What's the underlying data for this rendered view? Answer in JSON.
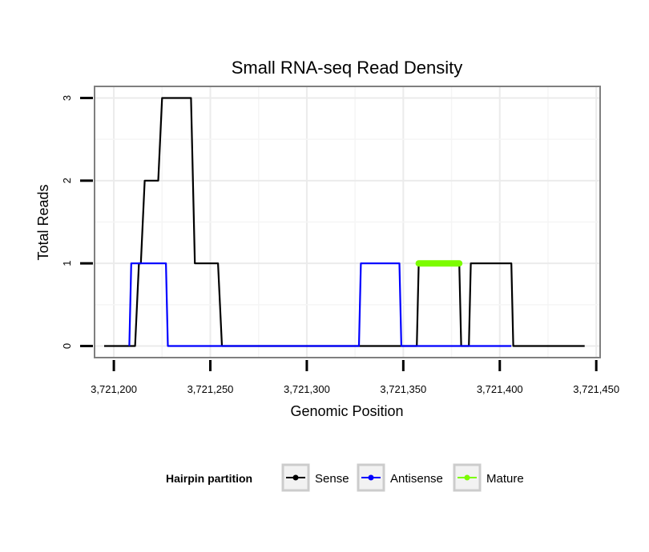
{
  "chart_data": {
    "type": "line",
    "title": "Small RNA-seq Read Density",
    "xlabel": "Genomic Position",
    "ylabel": "Total Reads",
    "xlim": [
      3721190,
      3721452
    ],
    "ylim": [
      -0.14,
      3.14
    ],
    "x_ticks": [
      3721200,
      3721250,
      3721300,
      3721350,
      3721400,
      3721450
    ],
    "x_tick_labels": [
      "3,721,200",
      "3,721,250",
      "3,721,300",
      "3,721,350",
      "3,721,400",
      "3,721,450"
    ],
    "y_ticks": [
      0,
      1,
      2,
      3
    ],
    "y_tick_labels": [
      "0",
      "1",
      "2",
      "3"
    ],
    "grid": true,
    "legend": {
      "title": "Hairpin partition",
      "position": "bottom"
    },
    "series": [
      {
        "name": "Sense",
        "color": "#000000",
        "points": [
          [
            3721195,
            0
          ],
          [
            3721211,
            0
          ],
          [
            3721213,
            1
          ],
          [
            3721214,
            1
          ],
          [
            3721216,
            2
          ],
          [
            3721223,
            2
          ],
          [
            3721225,
            3
          ],
          [
            3721240,
            3
          ],
          [
            3721242,
            1
          ],
          [
            3721254,
            1
          ],
          [
            3721256,
            0
          ],
          [
            3721357,
            0
          ],
          [
            3721358,
            1
          ],
          [
            3721379,
            1
          ],
          [
            3721380,
            0
          ],
          [
            3721384,
            0
          ],
          [
            3721385,
            1
          ],
          [
            3721406,
            1
          ],
          [
            3721407,
            0
          ],
          [
            3721444,
            0
          ]
        ]
      },
      {
        "name": "Antisense",
        "color": "#0000ff",
        "points": [
          [
            3721208,
            0
          ],
          [
            3721209,
            1
          ],
          [
            3721227,
            1
          ],
          [
            3721228,
            0
          ],
          [
            3721327,
            0
          ],
          [
            3721328,
            1
          ],
          [
            3721348,
            1
          ],
          [
            3721349,
            0
          ],
          [
            3721406,
            0
          ]
        ]
      },
      {
        "name": "Mature",
        "color": "#7cfc00",
        "points": [
          [
            3721358,
            1
          ],
          [
            3721379,
            1
          ]
        ]
      }
    ]
  }
}
